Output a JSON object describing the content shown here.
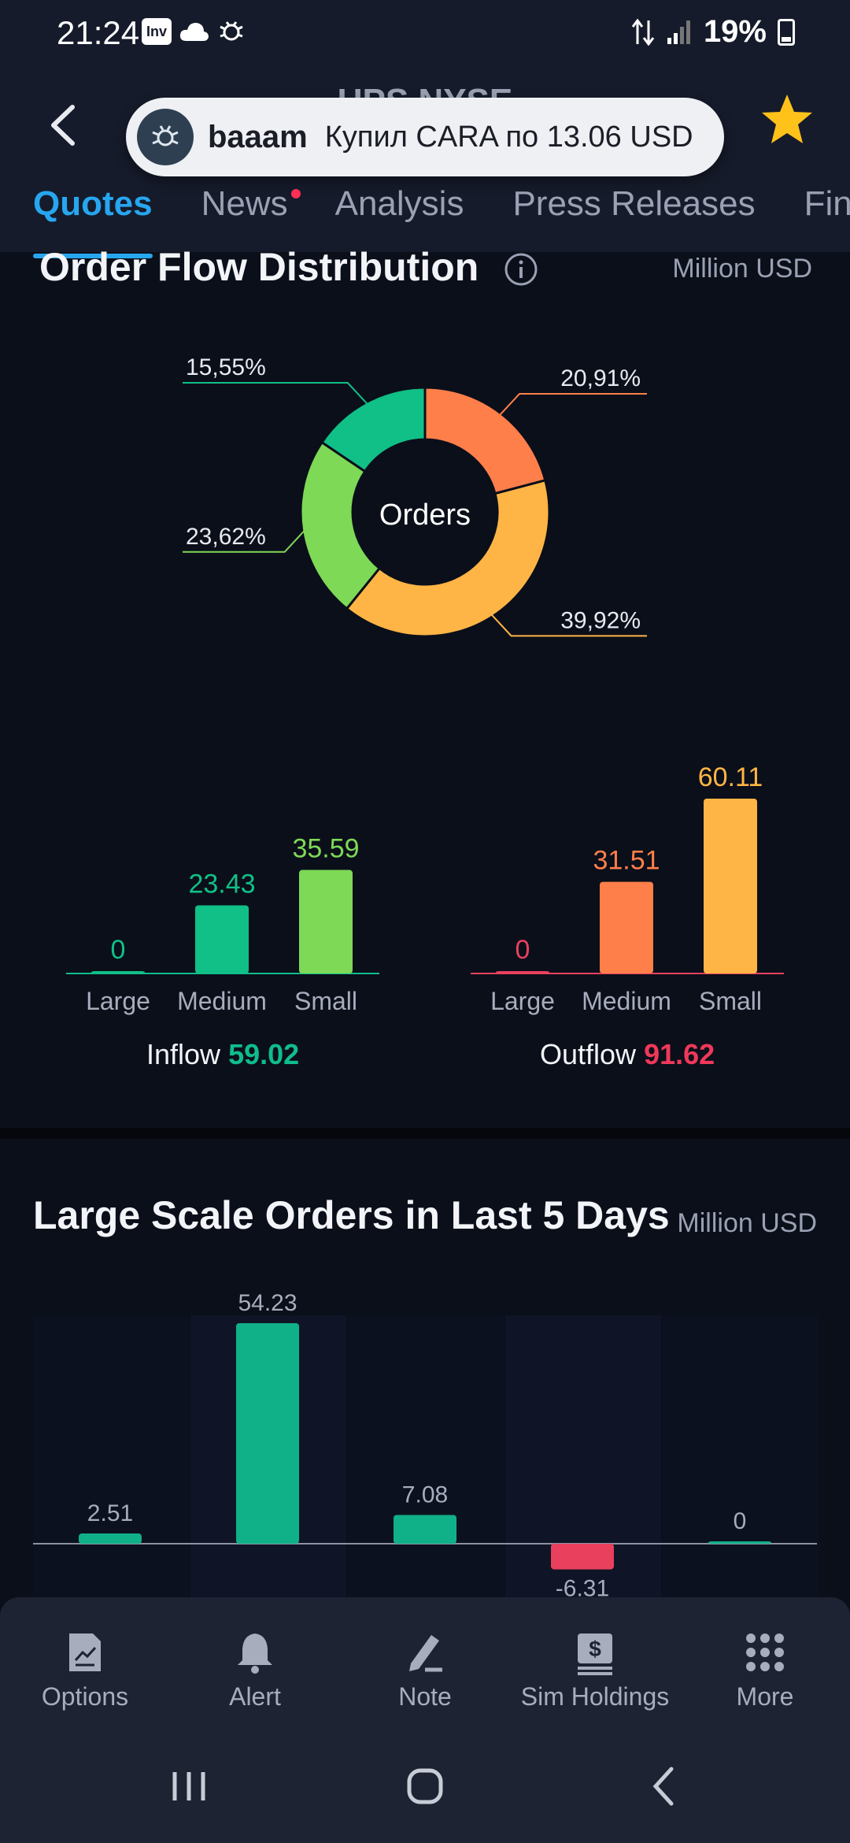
{
  "status": {
    "time": "21:24",
    "battery": "19%"
  },
  "header": {
    "ticker": "UPS NYSE",
    "toast_user": "baaam",
    "toast_message": "Купил CARA по 13.06 USD"
  },
  "tabs": [
    "Quotes",
    "News",
    "Analysis",
    "Press Releases",
    "Fina"
  ],
  "order_flow": {
    "title": "Order Flow Distribution",
    "unit": "Million USD",
    "donut_center": "Orders",
    "inflow_label": "Inflow",
    "inflow_value": "59.02",
    "outflow_label": "Outflow",
    "outflow_value": "91.62"
  },
  "large_orders": {
    "title": "Large Scale Orders in Last 5 Days",
    "unit": "Million USD"
  },
  "toolbar": {
    "options": "Options",
    "alert": "Alert",
    "note": "Note",
    "sim": "Sim Holdings",
    "more": "More"
  },
  "colors": {
    "green": "#10c086",
    "light_green": "#7ed957",
    "orange": "#ff7f4a",
    "yellow": "#ffb545",
    "red": "#e9405e",
    "accent": "#27a6f0"
  },
  "chart_data": [
    {
      "type": "pie",
      "title": "Order Flow Distribution",
      "center_label": "Orders",
      "labels": [
        "20,91%",
        "39,92%",
        "23,62%",
        "15,55%"
      ],
      "values": [
        20.91,
        39.92,
        23.62,
        15.55
      ],
      "colors": [
        "#ff7f4a",
        "#ffb545",
        "#7ed957",
        "#10c086"
      ]
    },
    {
      "type": "bar",
      "title": "Inflow",
      "categories": [
        "Large",
        "Medium",
        "Small"
      ],
      "values": [
        0,
        23.43,
        35.59
      ],
      "labels": [
        "0",
        "23.43",
        "35.59"
      ],
      "colors": [
        "#10c086",
        "#10c086",
        "#7ed957"
      ]
    },
    {
      "type": "bar",
      "title": "Outflow",
      "categories": [
        "Large",
        "Medium",
        "Small"
      ],
      "values": [
        0,
        31.51,
        60.11
      ],
      "labels": [
        "0",
        "31.51",
        "60.11"
      ],
      "colors": [
        "#e9405e",
        "#ff7f4a",
        "#ffb545"
      ]
    },
    {
      "type": "bar",
      "title": "Large Scale Orders in Last 5 Days",
      "values": [
        2.51,
        54.23,
        7.08,
        -6.31,
        0
      ],
      "labels": [
        "2.51",
        "54.23",
        "7.08",
        "-6.31",
        "0"
      ]
    }
  ]
}
